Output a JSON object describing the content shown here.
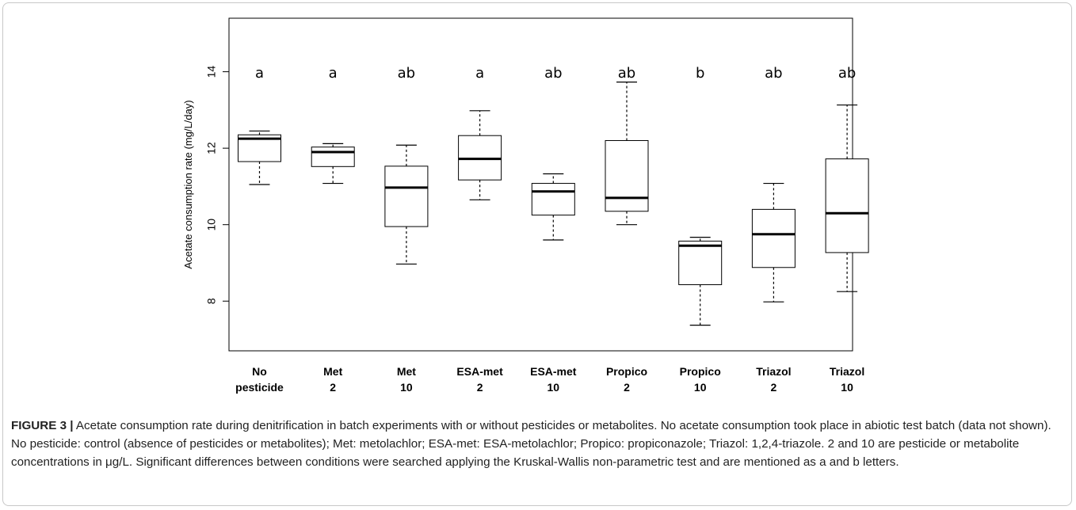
{
  "chart_data": {
    "type": "box",
    "ylabel": "Acetate consumption rate  (mg/L/day)",
    "xlabel": "",
    "ylim": [
      6.7,
      15.4
    ],
    "yticks": [
      8,
      10,
      12,
      14
    ],
    "grid": false,
    "categories": [
      {
        "line1": "No",
        "line2": "pesticide"
      },
      {
        "line1": "Met",
        "line2": "2"
      },
      {
        "line1": "Met",
        "line2": "10"
      },
      {
        "line1": "ESA-met",
        "line2": "2"
      },
      {
        "line1": "ESA-met",
        "line2": "10"
      },
      {
        "line1": "Propico",
        "line2": "2"
      },
      {
        "line1": "Propico",
        "line2": "10"
      },
      {
        "line1": "Triazol",
        "line2": "2"
      },
      {
        "line1": "Triazol",
        "line2": "10"
      }
    ],
    "boxes": [
      {
        "min": 11.05,
        "q1": 11.65,
        "median": 12.25,
        "q3": 12.35,
        "max": 12.45
      },
      {
        "min": 11.08,
        "q1": 11.52,
        "median": 11.9,
        "q3": 12.03,
        "max": 12.12
      },
      {
        "min": 8.97,
        "q1": 9.95,
        "median": 10.97,
        "q3": 11.53,
        "max": 12.08
      },
      {
        "min": 10.65,
        "q1": 11.17,
        "median": 11.72,
        "q3": 12.33,
        "max": 12.98
      },
      {
        "min": 9.6,
        "q1": 10.25,
        "median": 10.87,
        "q3": 11.08,
        "max": 11.33
      },
      {
        "min": 10.0,
        "q1": 10.35,
        "median": 10.7,
        "q3": 12.2,
        "max": 13.73
      },
      {
        "min": 7.37,
        "q1": 8.43,
        "median": 9.45,
        "q3": 9.57,
        "max": 9.67
      },
      {
        "min": 7.98,
        "q1": 8.88,
        "median": 9.75,
        "q3": 10.4,
        "max": 11.08
      },
      {
        "min": 8.25,
        "q1": 9.27,
        "median": 10.3,
        "q3": 11.72,
        "max": 13.13
      }
    ],
    "letters": [
      "a",
      "a",
      "ab",
      "a",
      "ab",
      "ab",
      "b",
      "ab",
      "ab"
    ]
  },
  "caption": {
    "lead": "FIGURE 3 |",
    "text": " Acetate consumption rate during denitrification in batch experiments with or without pesticides or metabolites. No acetate consumption took place in abiotic test batch (data not shown). No pesticide: control (absence of pesticides or metabolites); Met: metolachlor; ESA-met: ESA-metolachlor; Propico: propiconazole; Triazol: 1,2,4-triazole. 2 and 10 are pesticide or metabolite concentrations in μg/L. Significant differences between conditions were searched applying the Kruskal-Wallis non-parametric test and are mentioned as a and b letters."
  }
}
